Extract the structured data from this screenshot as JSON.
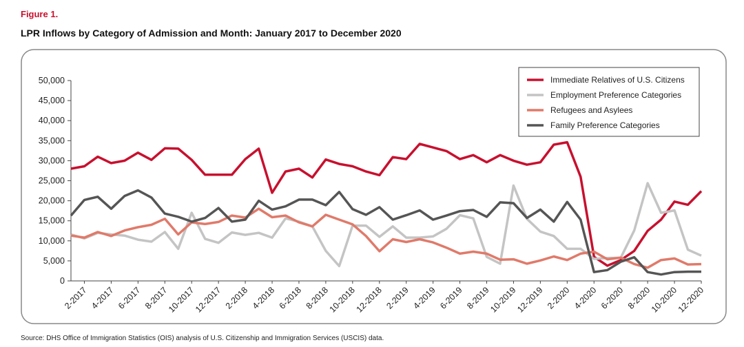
{
  "chart_data": {
    "type": "line",
    "figure_label": "Figure 1.",
    "title": "LPR Inflows by Category of Admission and Month: January 2017 to December 2020",
    "source": "Source: DHS Office of Immigration Statistics (OIS) analysis of U.S. Citizenship and Immigration Services (USCIS) data.",
    "categories": [
      null,
      "2-2017",
      null,
      "4-2017",
      null,
      "6-2017",
      null,
      "8-2017",
      null,
      "10-2017",
      null,
      "12-2017",
      null,
      "2-2018",
      null,
      "4-2018",
      null,
      "6-2018",
      null,
      "8-2018",
      null,
      "10-2018",
      null,
      "12-2018",
      null,
      "2-2019",
      null,
      "4-2019",
      null,
      "6-2019",
      null,
      "8-2019",
      null,
      "10-2019",
      null,
      "12-2019",
      null,
      "2-2020",
      null,
      "4-2020",
      null,
      "6-2020",
      null,
      "8-2020",
      null,
      "10-2020",
      null,
      "12-2020"
    ],
    "series": [
      {
        "name": "Immediate Relatives of U.S. Citizens",
        "color": "#c8102e",
        "values": [
          28000,
          28600,
          31000,
          29400,
          30000,
          32000,
          30200,
          33100,
          33000,
          30200,
          26500,
          26500,
          26500,
          30400,
          33000,
          22000,
          27300,
          28000,
          25800,
          30300,
          29200,
          28600,
          27300,
          26400,
          30900,
          30400,
          34200,
          33300,
          32400,
          30400,
          31400,
          29600,
          31400,
          30000,
          29000,
          29600,
          34000,
          34600,
          26000,
          6000,
          3800,
          5200,
          7500,
          12500,
          15300,
          19800,
          19000,
          22400
        ]
      },
      {
        "name": "Employment Preference Categories",
        "color": "#c4c4c4",
        "values": [
          11600,
          10600,
          12000,
          11600,
          11300,
          10300,
          9800,
          12200,
          8000,
          17000,
          10500,
          9500,
          12100,
          11500,
          12000,
          10800,
          15600,
          14800,
          13600,
          7500,
          3700,
          13800,
          13800,
          11000,
          13600,
          10800,
          10800,
          11100,
          13000,
          16400,
          15600,
          6000,
          4300,
          23800,
          15500,
          12300,
          11200,
          8000,
          8000,
          5500,
          5700,
          5800,
          12600,
          24400,
          17000,
          17600,
          7800,
          6300
        ]
      },
      {
        "name": "Refugees and Asylees",
        "color": "#e07a6a",
        "values": [
          11300,
          10800,
          12200,
          11200,
          12600,
          13400,
          14000,
          15500,
          11600,
          14600,
          14200,
          14700,
          16300,
          15800,
          18000,
          15900,
          16300,
          14600,
          13600,
          16500,
          15300,
          14100,
          11200,
          7400,
          10400,
          9700,
          10400,
          9600,
          8300,
          6800,
          7300,
          6800,
          5300,
          5400,
          4300,
          5100,
          6100,
          5200,
          6800,
          7300,
          5400,
          5800,
          4200,
          3300,
          5200,
          5600,
          4100,
          4200
        ]
      },
      {
        "name": "Family Preference Categories",
        "color": "#555555",
        "values": [
          16300,
          20200,
          21000,
          18000,
          21200,
          22600,
          20800,
          16800,
          16000,
          14800,
          15700,
          18200,
          14800,
          15300,
          20000,
          17800,
          18600,
          20300,
          20300,
          18900,
          22200,
          17900,
          16500,
          18400,
          15300,
          16400,
          17600,
          15300,
          16300,
          17400,
          17700,
          16000,
          19600,
          19400,
          15700,
          17800,
          14800,
          19700,
          15300,
          2200,
          2700,
          4800,
          5900,
          2200,
          1600,
          2200,
          2300,
          2300
        ]
      }
    ],
    "ylim": [
      0,
      50000
    ],
    "yticks": [
      0,
      {
        "value": 5000,
        "label": "5,000"
      },
      {
        "value": 10000,
        "label": "10,000"
      },
      {
        "value": 15000,
        "label": "15,000"
      },
      {
        "value": 20000,
        "label": "20,000"
      },
      {
        "value": 25000,
        "label": "25,000"
      },
      {
        "value": 30000,
        "label": "30,000"
      },
      {
        "value": 35000,
        "label": "35,000"
      },
      {
        "value": 40000,
        "label": "40,000"
      },
      {
        "value": 45000,
        "label": "45,000"
      },
      {
        "value": 50000,
        "label": "50,000"
      }
    ],
    "legend": "upper right"
  }
}
